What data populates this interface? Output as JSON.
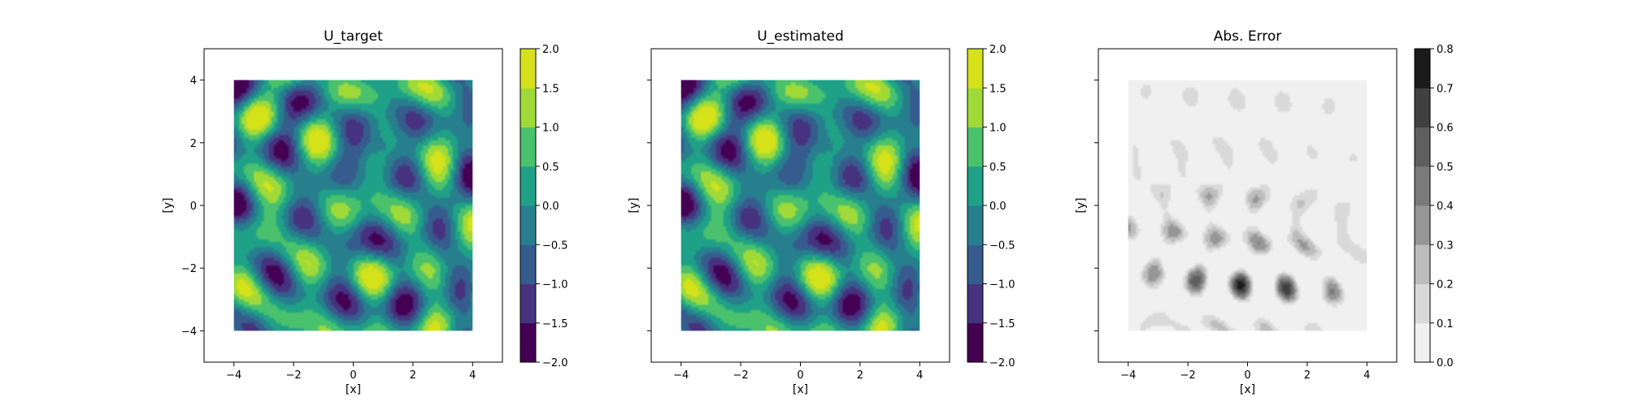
{
  "chart_data": [
    {
      "type": "heatmap",
      "title": "U_target",
      "xlabel": "[x]",
      "ylabel": "[y]",
      "xlim": [
        -5,
        5
      ],
      "ylim": [
        -5,
        5
      ],
      "x_ticks": [
        "−4",
        "−2",
        "0",
        "2",
        "4"
      ],
      "y_ticks": [
        "−4",
        "−2",
        "0",
        "2",
        "4"
      ],
      "show_y_ticklabels": true,
      "domain": [
        -4,
        4
      ],
      "colormap": "viridis",
      "colorbar": {
        "levels": [
          -2.0,
          -1.5,
          -1.0,
          -0.5,
          0.0,
          0.5,
          1.0,
          1.5,
          2.0
        ],
        "tick_labels": [
          "−2.0",
          "−1.5",
          "−1.0",
          "−0.5",
          "0.0",
          "0.5",
          "1.0",
          "1.5",
          "2.0"
        ],
        "colors": [
          "#440154",
          "#46327e",
          "#365c8d",
          "#277f8e",
          "#1fa187",
          "#4ac16d",
          "#a0da39",
          "#d5e21a"
        ]
      },
      "grid": false
    },
    {
      "type": "heatmap",
      "title": "U_estimated",
      "xlabel": "[x]",
      "ylabel": "[y]",
      "xlim": [
        -5,
        5
      ],
      "ylim": [
        -5,
        5
      ],
      "x_ticks": [
        "−4",
        "−2",
        "0",
        "2",
        "4"
      ],
      "y_ticks": [
        "",
        "",
        "",
        "",
        ""
      ],
      "show_y_ticklabels": false,
      "domain": [
        -4,
        4
      ],
      "colormap": "viridis",
      "colorbar": {
        "levels": [
          -2.0,
          -1.5,
          -1.0,
          -0.5,
          0.0,
          0.5,
          1.0,
          1.5,
          2.0
        ],
        "tick_labels": [
          "−2.0",
          "−1.5",
          "−1.0",
          "−0.5",
          "0.0",
          "0.5",
          "1.0",
          "1.5",
          "2.0"
        ],
        "colors": [
          "#440154",
          "#46327e",
          "#365c8d",
          "#277f8e",
          "#1fa187",
          "#4ac16d",
          "#a0da39",
          "#d5e21a"
        ]
      },
      "grid": false
    },
    {
      "type": "heatmap",
      "title": "Abs. Error",
      "xlabel": "[x]",
      "ylabel": "[y]",
      "xlim": [
        -5,
        5
      ],
      "ylim": [
        -5,
        5
      ],
      "x_ticks": [
        "−4",
        "−2",
        "0",
        "2",
        "4"
      ],
      "y_ticks": [
        "",
        "",
        "",
        "",
        ""
      ],
      "show_y_ticklabels": false,
      "domain": [
        -4,
        4
      ],
      "colormap": "greys",
      "colorbar": {
        "levels": [
          0.0,
          0.1,
          0.2,
          0.3,
          0.4,
          0.5,
          0.6,
          0.7,
          0.8
        ],
        "tick_labels": [
          "0.0",
          "0.1",
          "0.2",
          "0.3",
          "0.4",
          "0.5",
          "0.6",
          "0.7",
          "0.8"
        ],
        "colors": [
          "#f0f0f0",
          "#d9d9d9",
          "#bdbdbd",
          "#969696",
          "#7a7a7a",
          "#5e5e5e",
          "#404040",
          "#1a1a1a"
        ]
      },
      "grid": false
    }
  ]
}
